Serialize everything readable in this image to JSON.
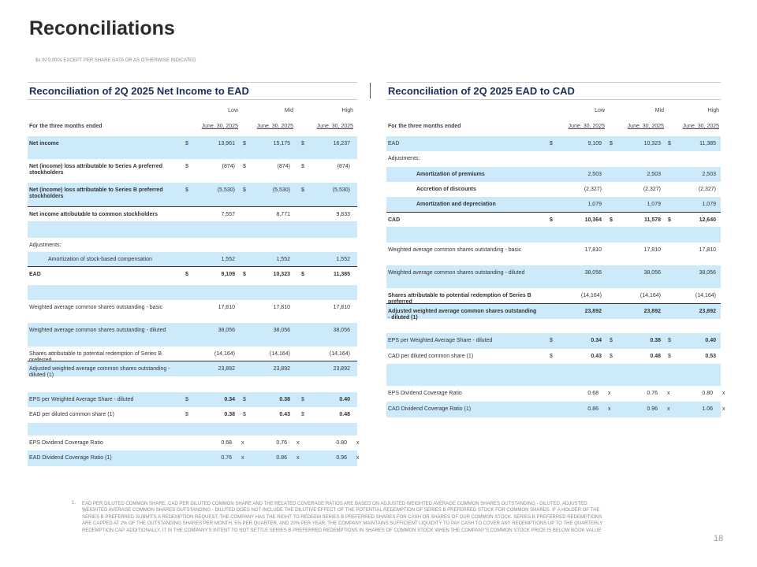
{
  "page": {
    "title": "Reconciliations",
    "subtitle": "$s IN 0,000s EXCEPT PER SHARE DATA OR AS OTHERWISE INDICATED",
    "page_number": "18"
  },
  "colors": {
    "shade": "#cdeafb",
    "title": "#1a2f5a"
  },
  "left": {
    "title": "Reconciliation of 2Q 2025 Net Income to EAD",
    "columns": [
      "Low",
      "Mid",
      "High"
    ],
    "period_label": "For the three months ended",
    "dates": [
      "June. 30, 2025",
      "June. 30, 2025",
      "June. 30, 2025"
    ],
    "rows": [
      {
        "label": "Net income",
        "dollar": true,
        "values": [
          "13,961",
          "15,175",
          "16,237"
        ],
        "semibold": true
      },
      {
        "label": "Net (income) loss attributable to Series A preferred stockholders",
        "dollar": true,
        "values": [
          "(874)",
          "(874)",
          "(874)"
        ],
        "semibold": true
      },
      {
        "label": "Net (income) loss attributable to Series B preferred stockholders",
        "dollar": true,
        "values": [
          "(5,530)",
          "(5,530)",
          "(5,530)"
        ],
        "semibold": true
      },
      {
        "label": "Net income attributable to common stockholders",
        "values": [
          "7,557",
          "8,771",
          "9,833"
        ],
        "semibold": true
      },
      {
        "label": "",
        "values": []
      },
      {
        "label": "Adjustments:",
        "values": []
      },
      {
        "label": "Amortization of stock-based compensation",
        "values": [
          "1,552",
          "1,552",
          "1,552"
        ],
        "indent": true
      },
      {
        "label": "EAD",
        "dollar": true,
        "values": [
          "9,109",
          "10,323",
          "11,385"
        ],
        "bold": true
      },
      {
        "label": "",
        "values": []
      },
      {
        "label": "Weighted average common shares outstanding - basic",
        "values": [
          "17,810",
          "17,810",
          "17,810"
        ]
      },
      {
        "label": "Weighted average common shares outstanding - diluted",
        "values": [
          "38,056",
          "38,056",
          "38,056"
        ]
      },
      {
        "label": "Shares attributable to potential redemption of Series B preferred",
        "values": [
          "(14,164)",
          "(14,164)",
          "(14,164)"
        ]
      },
      {
        "label": "Adjusted weighted average common shares outstanding - diluted (1)",
        "values": [
          "23,892",
          "23,892",
          "23,892"
        ]
      },
      {
        "label": "",
        "values": []
      },
      {
        "label": "EPS per Weighted Average Share - diluted",
        "dollar": true,
        "values": [
          "0.34",
          "0.38",
          "0.40"
        ],
        "boldvals": true
      },
      {
        "label": "EAD per diluted common share (1)",
        "dollar": true,
        "values": [
          "0.38",
          "0.43",
          "0.48"
        ],
        "boldvals": true
      },
      {
        "label": "",
        "values": []
      },
      {
        "label": "EPS Dividend Coverage Ratio",
        "values": [
          "0.68",
          "0.76",
          "0.80"
        ],
        "suffix": "x"
      },
      {
        "label": "EAD Dividend Coverage Ratio (1)",
        "values": [
          "0.76",
          "0.86",
          "0.96"
        ],
        "suffix": "x"
      }
    ]
  },
  "right": {
    "title": "Reconciliation of 2Q 2025 EAD to CAD",
    "columns": [
      "Low",
      "Mid",
      "High"
    ],
    "period_label": "For the three months ended",
    "dates": [
      "June. 30, 2025",
      "June. 30, 2025",
      "June. 30, 2025"
    ],
    "rows": [
      {
        "label": "EAD",
        "dollar": true,
        "values": [
          "9,109",
          "10,323",
          "11,385"
        ]
      },
      {
        "label": "Adjustments:",
        "values": []
      },
      {
        "label": "Amortization of premiums",
        "values": [
          "2,503",
          "2,503",
          "2,503"
        ],
        "indent": true,
        "semibold": true
      },
      {
        "label": "Accretion of discounts",
        "values": [
          "(2,327)",
          "(2,327)",
          "(2,327)"
        ],
        "indent": true,
        "semibold": true
      },
      {
        "label": "Amortization and depreciation",
        "values": [
          "1,079",
          "1,079",
          "1,079"
        ],
        "indent": true,
        "semibold": true
      },
      {
        "label": "CAD",
        "dollar": true,
        "values": [
          "10,364",
          "11,578",
          "12,640"
        ],
        "bold": true
      },
      {
        "label": "",
        "values": []
      },
      {
        "label": "Weighted average common shares outstanding - basic",
        "values": [
          "17,810",
          "17,810",
          "17,810"
        ]
      },
      {
        "label": "Weighted average common shares outstanding - diluted",
        "values": [
          "38,056",
          "38,056",
          "38,056"
        ]
      },
      {
        "label": "Shares attributable to potential redemption of Series B preferred",
        "values": [
          "(14,164)",
          "(14,164)",
          "(14,164)"
        ],
        "semibold": true
      },
      {
        "label": "Adjusted weighted average common shares outstanding - diluted (1)",
        "values": [
          "23,892",
          "23,892",
          "23,892"
        ],
        "bold": true
      },
      {
        "label": "",
        "values": []
      },
      {
        "label": "EPS per Weighted Average Share - diluted",
        "dollar": true,
        "values": [
          "0.34",
          "0.38",
          "0.40"
        ],
        "boldvals": true
      },
      {
        "label": "CAD per diluted common share (1)",
        "dollar": true,
        "values": [
          "0.43",
          "0.48",
          "0.53"
        ],
        "boldvals": true
      },
      {
        "label": "",
        "values": []
      },
      {
        "label": "EPS Dividend Coverage Ratio",
        "values": [
          "0.68",
          "0.76",
          "0.80"
        ],
        "suffix": "x"
      },
      {
        "label": "CAD Dividend Coverage Ratio (1)",
        "values": [
          "0.86",
          "0.96",
          "1.06"
        ],
        "suffix": "x"
      }
    ]
  },
  "footnote": {
    "number": "1.",
    "text": "EAD PER DILUTED COMMON SHARE, CAD PER DILUTED COMMON SHARE AND THE RELATED COVERAGE RATIOS ARE BASED ON ADJUSTED WEIGHTED AVERAGE COMMON SHARES OUTSTANDING - DILUTED. ADJUSTED WEIGHTED AVERAGE COMMON SHARES OUTSTANDING - DILUTED DOES NOT INCLUDE THE DILUTIVE EFFECT OF THE POTENTIAL REDEMPTION OF SERIES B PREFERRED STOCK FOR COMMON SHARES. IF A HOLDER OF THE SERIES B PREFERRED SUBMITS A REDEMPTION REQUEST, THE COMPANY HAS THE RIGHT TO REDEEM SERIES B PREFERRED SHARES FOR CASH OR SHARES OF OUR COMMON STOCK. SERIES B PREFERRED REDEMPTIONS ARE CAPPED AT 2% OF THE OUTSTANDING SHARES PER MONTH, 5% PER QUARTER, AND 20% PER YEAR. THE COMPANY MAINTAINS SUFFICIENT LIQUIDITY TO PAY CASH TO COVER ANY REDEMPTIONS UP TO THE QUARTERLY REDEMPTION CAP. ADDITIONALLY, IT IS THE COMPANY'S INTENT TO NOT SETTLE SERIES B PREFERRED REDEMPTIONS IN SHARES OF COMMON STOCK WHEN THE COMPANY'S COMMON STOCK PRICE IS BELOW BOOK VALUE"
  }
}
